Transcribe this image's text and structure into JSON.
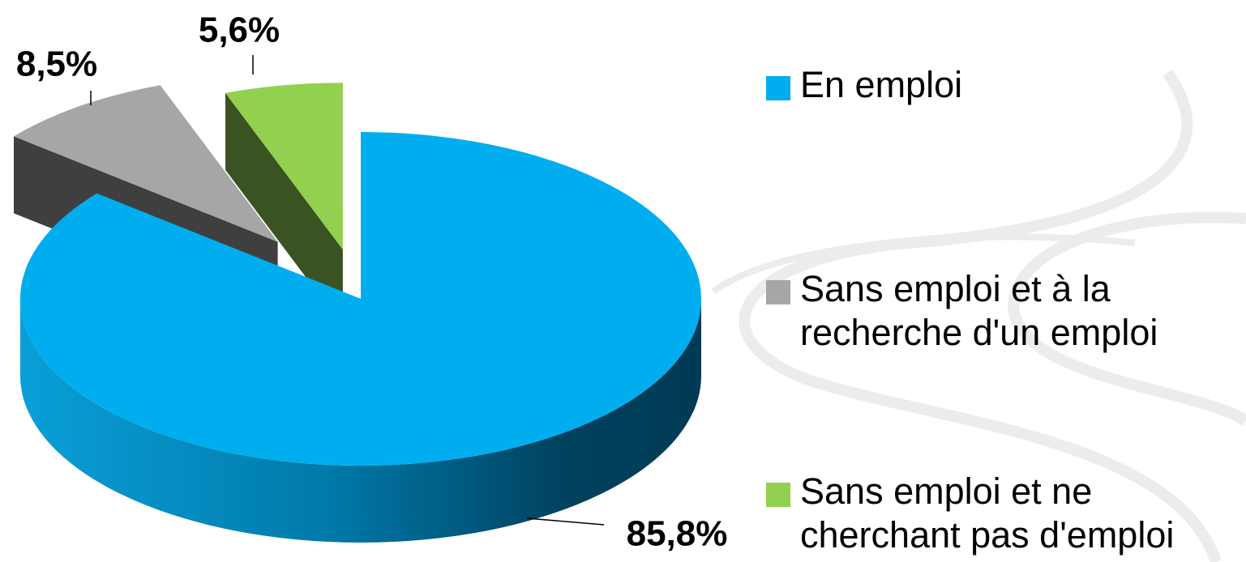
{
  "chart_data": {
    "type": "pie",
    "style": "3d-exploded",
    "categories": [
      "En emploi",
      "Sans emploi et à la recherche d'un emploi",
      "Sans emploi et ne cherchant pas d'emploi"
    ],
    "values": [
      85.8,
      8.5,
      5.6
    ],
    "value_labels": [
      "85,8%",
      "8,5%",
      "5,6%"
    ],
    "colors": [
      "#00aeef",
      "#a6a6a6",
      "#92d050"
    ],
    "legend": "right"
  }
}
